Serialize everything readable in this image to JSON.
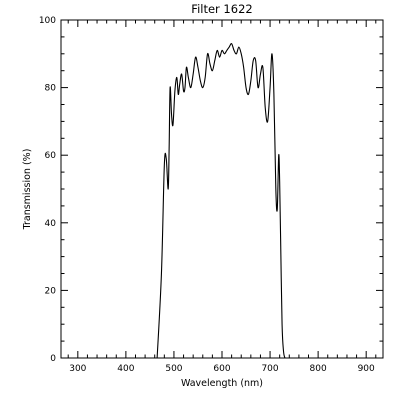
{
  "chart_data": {
    "type": "line",
    "title": "Filter  1622",
    "xlabel": "Wavelength (nm)",
    "ylabel": "Transmission (%)",
    "xlim": [
      265,
      935
    ],
    "ylim": [
      0,
      100
    ],
    "xticks": [
      300,
      400,
      500,
      600,
      700,
      800,
      900
    ],
    "yticks": [
      0,
      20,
      40,
      60,
      80,
      100
    ],
    "grid": false,
    "series": [
      {
        "x": [
          465,
          474,
          480,
          484,
          488,
          490,
          492,
          495,
          498,
          502,
          506,
          509,
          512,
          516,
          520,
          523,
          526,
          530,
          535,
          540,
          545,
          550,
          555,
          560,
          565,
          570,
          575,
          580,
          585,
          590,
          595,
          600,
          605,
          610,
          615,
          620,
          625,
          630,
          635,
          640,
          645,
          650,
          655,
          660,
          665,
          670,
          675,
          680,
          685,
          690,
          695,
          700,
          704,
          708,
          712,
          715,
          718,
          720,
          722,
          725,
          728,
          731
        ],
        "y": [
          0,
          25,
          57,
          59,
          50,
          62,
          80,
          72,
          69,
          79,
          83,
          78,
          81,
          84,
          79,
          80,
          86,
          83,
          80,
          84,
          89,
          86,
          82,
          80,
          83,
          90,
          87,
          85,
          88,
          91,
          89,
          91,
          90,
          91,
          92,
          93,
          91,
          90,
          92,
          90,
          86,
          80,
          78,
          82,
          88,
          88,
          80,
          84,
          86,
          74,
          70,
          80,
          90,
          78,
          50,
          44,
          60,
          52,
          35,
          10,
          2,
          0
        ]
      }
    ]
  }
}
